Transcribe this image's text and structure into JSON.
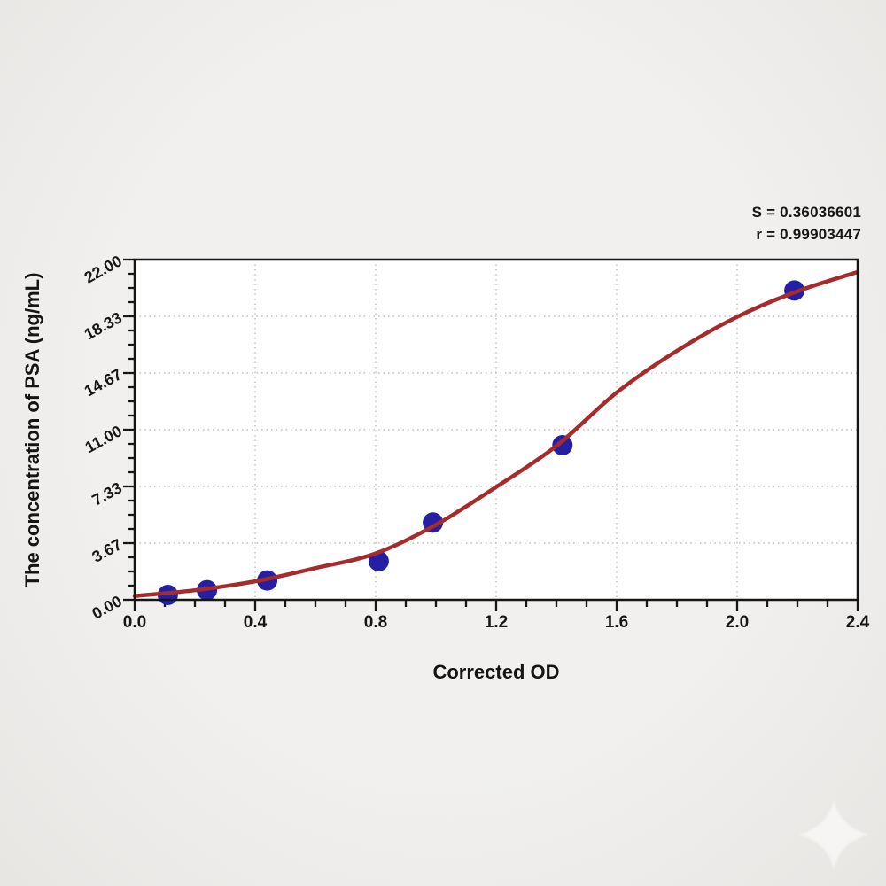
{
  "figure": {
    "background_color": "#edecea",
    "plot_background_color": "#ffffff",
    "frame_color": "#161616",
    "watermark": "sparkle-star"
  },
  "annotation": {
    "s_line": "S = 0.36036601",
    "r_line": "r = 0.99903447"
  },
  "chart_data": {
    "type": "scatter",
    "title": "",
    "xlabel": "Corrected OD",
    "ylabel": "The concentration of PSA (ng/mL)",
    "xlim": [
      0.0,
      2.4
    ],
    "ylim": [
      0.0,
      22.0
    ],
    "x_tick_values": [
      0.0,
      0.4,
      0.8,
      1.2,
      1.6,
      2.0,
      2.4
    ],
    "x_tick_labels": [
      "0.0",
      "0.4",
      "0.8",
      "1.2",
      "1.6",
      "2.0",
      "2.4"
    ],
    "y_tick_values": [
      0.0,
      3.6667,
      7.3333,
      11.0,
      14.6667,
      18.3333,
      22.0
    ],
    "y_tick_labels": [
      "0.00",
      "3.67",
      "7.33",
      "11.00",
      "14.67",
      "18.33",
      "22.00"
    ],
    "minor_tick_subdivisions": 4,
    "grid": {
      "on": true,
      "style": "dotted",
      "at": "major-ticks",
      "color": "#bdbdbd"
    },
    "legend_position": "none",
    "series": [
      {
        "name": "standard-points",
        "type": "scatter",
        "color": "#241fa3",
        "marker_radius": 11.5,
        "points": [
          {
            "x": 0.11,
            "y": 0.313
          },
          {
            "x": 0.24,
            "y": 0.625
          },
          {
            "x": 0.44,
            "y": 1.25
          },
          {
            "x": 0.81,
            "y": 2.5
          },
          {
            "x": 0.99,
            "y": 5.0
          },
          {
            "x": 1.42,
            "y": 10.0
          },
          {
            "x": 2.19,
            "y": 20.0
          }
        ]
      },
      {
        "name": "fitted-curve",
        "type": "line",
        "color": "#a42c2c",
        "stroke_width": 4.5,
        "x": [
          0.0,
          0.2,
          0.4,
          0.6,
          0.8,
          1.0,
          1.2,
          1.4,
          1.6,
          1.8,
          2.0,
          2.2,
          2.4
        ],
        "y": [
          0.25,
          0.62,
          1.2,
          2.05,
          3.0,
          4.85,
          7.3,
          9.95,
          13.4,
          16.1,
          18.3,
          19.95,
          21.2
        ]
      }
    ],
    "fit_stats": {
      "S": 0.36036601,
      "r": 0.99903447
    }
  }
}
